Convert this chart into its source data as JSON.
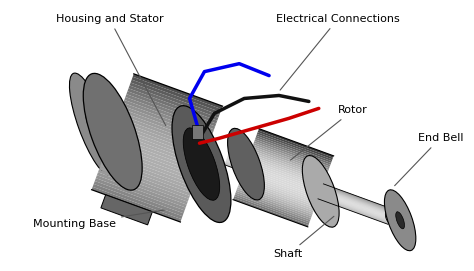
{
  "background_color": "#ffffff",
  "labels": {
    "housing_stator": "Housing and Stator",
    "electrical_connections": "Electrical Connections",
    "rotor": "Rotor",
    "end_bell": "End Bell",
    "mounting_base": "Mounting Base",
    "shaft": "Shaft"
  },
  "colors": {
    "wire_blue": "#0000ee",
    "wire_black": "#111111",
    "wire_red": "#cc0000",
    "text_color": "#000000"
  },
  "figsize": [
    4.74,
    2.71
  ],
  "dpi": 100
}
